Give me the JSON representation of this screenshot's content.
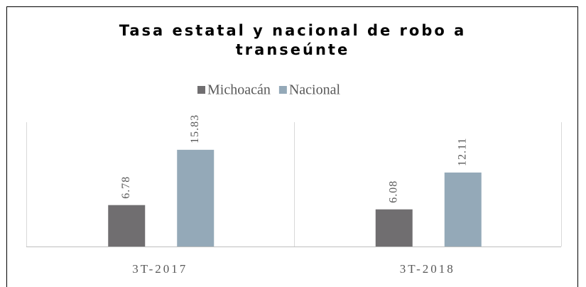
{
  "chart_data": {
    "type": "bar",
    "title": "Tasa estatal y nacional de robo a transeúnte",
    "categories": [
      "3T-2017",
      "3T-2018"
    ],
    "series": [
      {
        "name": "Michoacán",
        "color": "#706e70",
        "values": [
          6.78,
          6.08
        ]
      },
      {
        "name": "Nacional",
        "color": "#94a9b8",
        "values": [
          15.83,
          12.11
        ]
      }
    ],
    "ylim": [
      0,
      20
    ],
    "legend": "top"
  }
}
